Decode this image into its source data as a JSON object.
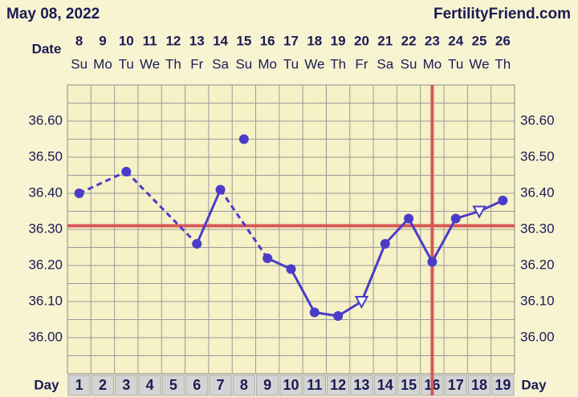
{
  "title": "May 08, 2022",
  "site": "FertilityFriend.com",
  "chart_data": {
    "type": "line",
    "date_label": "Date",
    "day_label": "Day",
    "dates": [
      8,
      9,
      10,
      11,
      12,
      13,
      14,
      15,
      16,
      17,
      18,
      19,
      20,
      21,
      22,
      23,
      24,
      25,
      26
    ],
    "weekdays": [
      "Su",
      "Mo",
      "Tu",
      "We",
      "Th",
      "Fr",
      "Sa",
      "Su",
      "Mo",
      "Tu",
      "We",
      "Th",
      "Fr",
      "Sa",
      "Su",
      "Mo",
      "Tu",
      "We",
      "Th"
    ],
    "x": [
      1,
      2,
      3,
      4,
      5,
      6,
      7,
      8,
      9,
      10,
      11,
      12,
      13,
      14,
      15,
      16,
      17,
      18,
      19
    ],
    "xlim": [
      0.5,
      19.5
    ],
    "values": [
      36.4,
      null,
      36.46,
      null,
      null,
      36.26,
      36.41,
      null,
      36.22,
      36.19,
      36.07,
      36.06,
      36.1,
      36.26,
      36.33,
      36.21,
      36.33,
      36.35,
      36.38
    ],
    "markers": [
      "circle",
      null,
      "circle",
      null,
      null,
      "circle",
      "circle",
      null,
      "circle",
      "circle",
      "circle",
      "circle",
      "triangle",
      "circle",
      "circle",
      "circle",
      "circle",
      "triangle",
      "circle"
    ],
    "excluded_values": [
      null,
      null,
      null,
      null,
      null,
      null,
      null,
      36.55,
      null,
      null,
      null,
      null,
      null,
      null,
      null,
      null,
      null,
      null,
      null
    ],
    "color": "#4a3cc8",
    "coverline": 36.31,
    "ovulation_day": 16,
    "reference_color": "#d95757",
    "ylim": [
      35.9,
      36.7
    ],
    "yticks": [
      {
        "value": 36.0,
        "label": "36.00"
      },
      {
        "value": 36.1,
        "label": "36.10"
      },
      {
        "value": 36.2,
        "label": "36.20"
      },
      {
        "value": 36.3,
        "label": "36.30"
      },
      {
        "value": 36.4,
        "label": "36.40"
      },
      {
        "value": 36.5,
        "label": "36.50"
      },
      {
        "value": 36.6,
        "label": "36.60"
      }
    ],
    "grid_yticks": [
      35.95,
      36.05,
      36.15,
      36.25,
      36.35,
      36.45,
      36.55,
      36.65
    ],
    "grid": true
  }
}
